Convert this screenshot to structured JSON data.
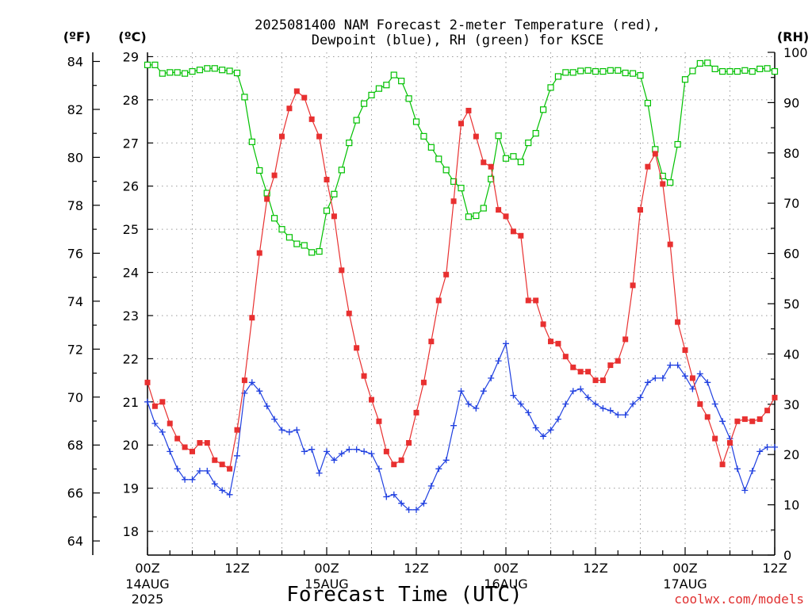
{
  "chart_data": {
    "type": "line",
    "title_line1": "2025081400 NAM Forecast 2-meter Temperature (red),",
    "title_line2": "Dewpoint (blue), RH (green) for KSCE",
    "xlabel": "Forecast Time (UTC)",
    "watermark": "coolwx.com/models",
    "x_hours_range": [
      0,
      84
    ],
    "x_ticks": [
      {
        "hour": 0,
        "label": "00Z",
        "sub1": "14AUG",
        "sub2": "2025"
      },
      {
        "hour": 12,
        "label": "12Z",
        "sub1": "",
        "sub2": ""
      },
      {
        "hour": 24,
        "label": "00Z",
        "sub1": "15AUG",
        "sub2": ""
      },
      {
        "hour": 36,
        "label": "12Z",
        "sub1": "",
        "sub2": ""
      },
      {
        "hour": 48,
        "label": "00Z",
        "sub1": "16AUG",
        "sub2": ""
      },
      {
        "hour": 60,
        "label": "12Z",
        "sub1": "",
        "sub2": ""
      },
      {
        "hour": 72,
        "label": "00Z",
        "sub1": "17AUG",
        "sub2": ""
      },
      {
        "hour": 84,
        "label": "12Z",
        "sub1": "",
        "sub2": ""
      }
    ],
    "axes": {
      "fahrenheit": {
        "label": "(ºF)",
        "ticks": [
          64,
          66,
          68,
          70,
          72,
          74,
          76,
          78,
          80,
          82,
          84
        ]
      },
      "celsius": {
        "label": "(ºC)",
        "range": [
          17.45,
          29.1
        ],
        "ticks": [
          18,
          19,
          20,
          21,
          22,
          23,
          24,
          25,
          26,
          27,
          28,
          29
        ]
      },
      "rh": {
        "label": "(RH)",
        "range": [
          0,
          100
        ],
        "ticks": [
          0,
          10,
          20,
          30,
          40,
          50,
          60,
          70,
          80,
          90,
          100
        ]
      }
    },
    "grid": true,
    "colors": {
      "temperature": "#e83030",
      "dewpoint": "#2040e0",
      "rh": "#00c000"
    },
    "series": [
      {
        "name": "Temperature (red)",
        "unit": "°C",
        "x_hours": [
          0,
          1,
          2,
          3,
          4,
          5,
          6,
          7,
          8,
          9,
          10,
          11,
          12,
          13,
          14,
          15,
          16,
          17,
          18,
          19,
          20,
          21,
          22,
          23,
          24,
          25,
          26,
          27,
          28,
          29,
          30,
          31,
          32,
          33,
          34,
          35,
          36,
          37,
          38,
          39,
          40,
          41,
          42,
          43,
          44,
          45,
          46,
          47,
          48,
          49,
          50,
          51,
          52,
          53,
          54,
          55,
          56,
          57,
          58,
          59,
          60,
          61,
          62,
          63,
          64,
          65,
          66,
          67,
          68,
          69,
          70,
          71,
          72,
          73,
          74,
          75,
          76,
          77,
          78,
          79,
          80,
          81,
          82,
          83,
          84
        ],
        "values": [
          21.45,
          20.9,
          21.0,
          20.5,
          20.15,
          19.95,
          19.85,
          20.05,
          20.05,
          19.65,
          19.55,
          19.45,
          20.35,
          21.5,
          22.95,
          24.45,
          25.7,
          26.25,
          27.15,
          27.8,
          28.2,
          28.05,
          27.55,
          27.15,
          26.15,
          25.3,
          24.05,
          23.05,
          22.25,
          21.6,
          21.05,
          20.55,
          19.85,
          19.55,
          19.65,
          20.05,
          20.75,
          21.45,
          22.4,
          23.35,
          23.95,
          25.65,
          27.45,
          27.75,
          27.15,
          26.55,
          26.45,
          25.45,
          25.3,
          24.95,
          24.85,
          23.35,
          23.35,
          22.8,
          22.4,
          22.35,
          22.05,
          21.8,
          21.7,
          21.7,
          21.5,
          21.5,
          21.85,
          21.95,
          22.45,
          23.7,
          25.45,
          26.45,
          26.75,
          26.05,
          24.65,
          22.85,
          22.2,
          21.55,
          20.95,
          20.65,
          20.15,
          19.55,
          20.05,
          20.55,
          20.6,
          20.55,
          20.6,
          20.8,
          21.1
        ]
      },
      {
        "name": "Dewpoint (blue)",
        "unit": "°C",
        "x_hours": [
          0,
          1,
          2,
          3,
          4,
          5,
          6,
          7,
          8,
          9,
          10,
          11,
          12,
          13,
          14,
          15,
          16,
          17,
          18,
          19,
          20,
          21,
          22,
          23,
          24,
          25,
          26,
          27,
          28,
          29,
          30,
          31,
          32,
          33,
          34,
          35,
          36,
          37,
          38,
          39,
          40,
          41,
          42,
          43,
          44,
          45,
          46,
          47,
          48,
          49,
          50,
          51,
          52,
          53,
          54,
          55,
          56,
          57,
          58,
          59,
          60,
          61,
          62,
          63,
          64,
          65,
          66,
          67,
          68,
          69,
          70,
          71,
          72,
          73,
          74,
          75,
          76,
          77,
          78,
          79,
          80,
          81,
          82,
          83,
          84
        ],
        "values": [
          21.0,
          20.5,
          20.3,
          19.85,
          19.45,
          19.2,
          19.2,
          19.4,
          19.4,
          19.1,
          18.95,
          18.85,
          19.75,
          21.2,
          21.45,
          21.25,
          20.9,
          20.6,
          20.35,
          20.3,
          20.35,
          19.85,
          19.9,
          19.35,
          19.85,
          19.65,
          19.8,
          19.9,
          19.9,
          19.85,
          19.8,
          19.45,
          18.8,
          18.85,
          18.65,
          18.5,
          18.5,
          18.65,
          19.05,
          19.45,
          19.65,
          20.45,
          21.25,
          20.95,
          20.85,
          21.25,
          21.55,
          21.95,
          22.35,
          21.15,
          20.95,
          20.75,
          20.4,
          20.2,
          20.35,
          20.6,
          20.95,
          21.25,
          21.3,
          21.1,
          20.95,
          20.85,
          20.8,
          20.7,
          20.7,
          20.95,
          21.1,
          21.45,
          21.55,
          21.55,
          21.85,
          21.85,
          21.6,
          21.3,
          21.65,
          21.45,
          20.95,
          20.55,
          20.15,
          19.45,
          18.95,
          19.4,
          19.85,
          19.95,
          19.95
        ]
      },
      {
        "name": "RH (green)",
        "unit": "%",
        "x_hours": [
          0,
          1,
          2,
          3,
          4,
          5,
          6,
          7,
          8,
          9,
          10,
          11,
          12,
          13,
          14,
          15,
          16,
          17,
          18,
          19,
          20,
          21,
          22,
          23,
          24,
          25,
          26,
          27,
          28,
          29,
          30,
          31,
          32,
          33,
          34,
          35,
          36,
          37,
          38,
          39,
          40,
          41,
          42,
          43,
          44,
          45,
          46,
          47,
          48,
          49,
          50,
          51,
          52,
          53,
          54,
          55,
          56,
          57,
          58,
          59,
          60,
          61,
          62,
          63,
          64,
          65,
          66,
          67,
          68,
          69,
          70,
          71,
          72,
          73,
          74,
          75,
          76,
          77,
          78,
          79,
          80,
          81,
          82,
          83,
          84
        ],
        "values": [
          97.5,
          97.5,
          95.8,
          96,
          96,
          95.8,
          96.2,
          96.5,
          96.8,
          96.8,
          96.5,
          96.3,
          95.9,
          91.1,
          82.2,
          76.5,
          72,
          67,
          64.8,
          63.2,
          61.9,
          61.6,
          60.2,
          60.4,
          68.5,
          71.8,
          76.6,
          82,
          86.5,
          89.8,
          91.5,
          92.8,
          93.5,
          95.5,
          94.3,
          90.8,
          86.2,
          83.3,
          81.1,
          78.8,
          76.6,
          74.3,
          73,
          67.3,
          67.5,
          69,
          74.8,
          83.4,
          78.9,
          79.3,
          78.2,
          82,
          83.9,
          88.6,
          93,
          95.2,
          96,
          96,
          96.3,
          96.4,
          96.2,
          96.2,
          96.4,
          96.4,
          95.9,
          95.8,
          95.4,
          89.9,
          80.7,
          75.4,
          74.1,
          81.7,
          94.6,
          96.3,
          97.8,
          97.9,
          96.7,
          96.2,
          96.2,
          96.2,
          96.4,
          96.2,
          96.7,
          96.8,
          96.2
        ]
      }
    ]
  }
}
